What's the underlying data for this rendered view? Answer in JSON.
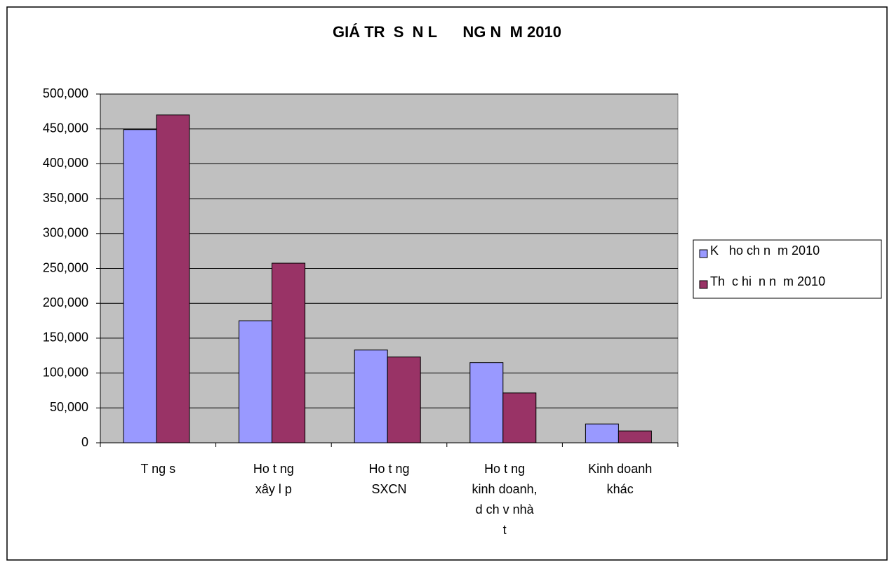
{
  "chart_data": {
    "type": "bar",
    "title": "GIÁ TR  S  N L      NG N  M 2010",
    "categories": [
      "T  ng s",
      "Ho t      ng\nxây l  p",
      "Ho t      ng\nSXCN",
      "Ho t      ng\nkinh doanh,\nd ch v   nhà\nt",
      "Kinh doanh\nkhác"
    ],
    "series": [
      {
        "name": "K   ho ch n  m 2010",
        "color": "#9999ff",
        "values": [
          449000,
          175000,
          133000,
          115000,
          27000
        ]
      },
      {
        "name": "Th  c hi  n n  m 2010",
        "color": "#993366",
        "values": [
          470000,
          257500,
          123000,
          71500,
          17000
        ]
      }
    ],
    "ylim": [
      0,
      500000
    ],
    "yticks": [
      0,
      {
        "value": 50000,
        "label": "50,000"
      },
      {
        "value": 100000,
        "label": "100,000"
      },
      {
        "value": 150000,
        "label": "150,000"
      },
      {
        "value": 200000,
        "label": "200,000"
      },
      {
        "value": 250000,
        "label": "250,000"
      },
      {
        "value": 300000,
        "label": "300,000"
      },
      {
        "value": 350000,
        "label": "350,000"
      },
      {
        "value": 400000,
        "label": "400,000"
      },
      {
        "value": 450000,
        "label": "450,000"
      },
      {
        "value": 500000,
        "label": "500,000"
      }
    ],
    "grid": true,
    "legend": "right"
  }
}
